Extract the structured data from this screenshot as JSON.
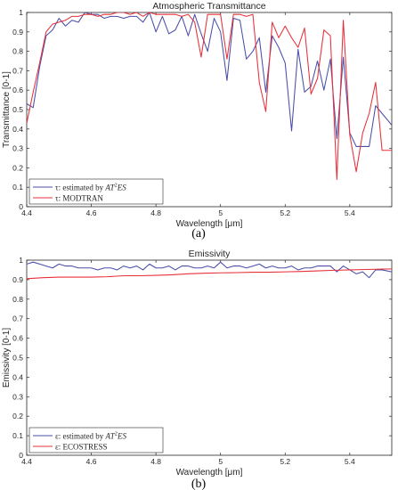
{
  "figure": {
    "caption_a": "(a)",
    "caption_b": "(b)"
  },
  "chart_data": [
    {
      "type": "line",
      "title": "Atmospheric Transmittance",
      "xlabel": "Wavelength [μm]",
      "ylabel": "Transmittance [0-1]",
      "xlim": [
        4.4,
        5.53
      ],
      "ylim": [
        0,
        1
      ],
      "xticks": [
        4.4,
        4.6,
        4.8,
        5,
        5.2,
        5.4
      ],
      "yticks": [
        0,
        0.1,
        0.2,
        0.3,
        0.4,
        0.5,
        0.6,
        0.7,
        0.8,
        0.9,
        1
      ],
      "grid": false,
      "legend_position": "bottom-left",
      "series": [
        {
          "name": "τ: estimated by AT²ES",
          "legend_prefix": "τ: estimated by ",
          "legend_math": "AT",
          "legend_sup": "2",
          "legend_math2": "ES",
          "color": "#4a4ea8",
          "x": [
            4.4,
            4.42,
            4.44,
            4.46,
            4.48,
            4.5,
            4.52,
            4.54,
            4.56,
            4.58,
            4.6,
            4.62,
            4.64,
            4.66,
            4.68,
            4.7,
            4.72,
            4.74,
            4.76,
            4.78,
            4.8,
            4.82,
            4.84,
            4.86,
            4.88,
            4.9,
            4.92,
            4.94,
            4.96,
            4.98,
            5.0,
            5.02,
            5.04,
            5.06,
            5.08,
            5.1,
            5.12,
            5.14,
            5.16,
            5.18,
            5.2,
            5.22,
            5.24,
            5.26,
            5.28,
            5.3,
            5.32,
            5.34,
            5.36,
            5.38,
            5.4,
            5.42,
            5.44,
            5.46,
            5.48,
            5.5,
            5.53
          ],
          "values": [
            0.53,
            0.51,
            0.72,
            0.88,
            0.91,
            0.97,
            0.93,
            0.96,
            0.95,
            1.0,
            0.99,
            0.99,
            0.97,
            0.98,
            0.98,
            0.97,
            0.98,
            0.98,
            0.95,
            1.0,
            0.9,
            0.98,
            0.89,
            0.91,
            0.98,
            0.88,
            0.99,
            0.89,
            0.8,
            0.97,
            0.9,
            0.65,
            0.97,
            0.96,
            0.76,
            0.8,
            0.87,
            0.59,
            0.88,
            0.82,
            0.74,
            0.39,
            0.81,
            0.59,
            0.62,
            0.75,
            0.6,
            0.76,
            0.35,
            0.77,
            0.38,
            0.31,
            0.31,
            0.31,
            0.52,
            0.48,
            0.42
          ]
        },
        {
          "name": "τ: MODTRAN",
          "legend_prefix": "τ: MODTRAN",
          "color": "#e8303a",
          "x": [
            4.4,
            4.42,
            4.44,
            4.46,
            4.48,
            4.5,
            4.52,
            4.54,
            4.56,
            4.58,
            4.6,
            4.62,
            4.64,
            4.66,
            4.68,
            4.7,
            4.72,
            4.74,
            4.76,
            4.78,
            4.8,
            4.82,
            4.84,
            4.86,
            4.88,
            4.9,
            4.92,
            4.94,
            4.96,
            4.98,
            5.0,
            5.02,
            5.04,
            5.06,
            5.08,
            5.1,
            5.12,
            5.14,
            5.16,
            5.18,
            5.2,
            5.22,
            5.24,
            5.26,
            5.28,
            5.3,
            5.32,
            5.34,
            5.36,
            5.38,
            5.4,
            5.42,
            5.44,
            5.46,
            5.48,
            5.5,
            5.53
          ],
          "values": [
            0.43,
            0.59,
            0.74,
            0.9,
            0.94,
            0.95,
            0.96,
            0.98,
            0.98,
            0.99,
            0.99,
            0.98,
            0.99,
            0.99,
            1.0,
            1.0,
            0.99,
            1.0,
            0.98,
            1.0,
            0.99,
            0.99,
            0.99,
            0.99,
            0.98,
            0.99,
            0.95,
            0.77,
            0.99,
            0.99,
            0.99,
            0.76,
            0.99,
            0.99,
            0.98,
            0.99,
            0.64,
            0.49,
            0.95,
            0.87,
            0.93,
            0.87,
            0.82,
            0.92,
            0.58,
            0.66,
            0.91,
            0.88,
            0.14,
            0.96,
            0.37,
            0.18,
            0.38,
            0.48,
            0.64,
            0.29,
            0.29
          ]
        }
      ]
    },
    {
      "type": "line",
      "title": "Emissivity",
      "xlabel": "Wavelength [μm]",
      "ylabel": "Emissivity [0-1]",
      "xlim": [
        4.4,
        5.53
      ],
      "ylim": [
        0,
        1
      ],
      "xticks": [
        4.4,
        4.6,
        4.8,
        5,
        5.2,
        5.4
      ],
      "yticks": [
        0,
        0.1,
        0.2,
        0.3,
        0.4,
        0.5,
        0.6,
        0.7,
        0.8,
        0.9,
        1
      ],
      "grid": false,
      "legend_position": "bottom-left",
      "series": [
        {
          "name": "ε: estimated by AT²ES",
          "legend_prefix": "ε: estimated by ",
          "legend_math": "AT",
          "legend_sup": "2",
          "legend_math2": "ES",
          "color": "#4a4ea8",
          "x": [
            4.4,
            4.42,
            4.44,
            4.46,
            4.48,
            4.5,
            4.52,
            4.54,
            4.56,
            4.58,
            4.6,
            4.62,
            4.64,
            4.66,
            4.68,
            4.7,
            4.72,
            4.74,
            4.76,
            4.78,
            4.8,
            4.82,
            4.84,
            4.86,
            4.88,
            4.9,
            4.92,
            4.94,
            4.96,
            4.98,
            5.0,
            5.02,
            5.04,
            5.06,
            5.08,
            5.1,
            5.12,
            5.14,
            5.16,
            5.18,
            5.2,
            5.22,
            5.24,
            5.26,
            5.28,
            5.3,
            5.32,
            5.34,
            5.36,
            5.38,
            5.4,
            5.42,
            5.44,
            5.46,
            5.48,
            5.5,
            5.53
          ],
          "values": [
            0.98,
            0.99,
            0.98,
            0.97,
            0.96,
            0.98,
            0.97,
            0.97,
            0.96,
            0.96,
            0.96,
            0.95,
            0.96,
            0.96,
            0.95,
            0.97,
            0.96,
            0.97,
            0.95,
            0.98,
            0.96,
            0.96,
            0.97,
            0.95,
            0.97,
            0.97,
            0.96,
            0.96,
            0.97,
            0.96,
            0.99,
            0.96,
            0.97,
            0.97,
            0.96,
            0.97,
            0.98,
            0.96,
            0.97,
            0.96,
            0.96,
            0.97,
            0.95,
            0.96,
            0.96,
            0.97,
            0.97,
            0.97,
            0.94,
            0.97,
            0.95,
            0.93,
            0.94,
            0.91,
            0.95,
            0.95,
            0.94
          ]
        },
        {
          "name": "ε: ECOSTRESS",
          "legend_prefix": "ε: ECOSTRESS",
          "color": "#e8303a",
          "x": [
            4.4,
            4.45,
            4.5,
            4.55,
            4.6,
            4.65,
            4.7,
            4.75,
            4.8,
            4.85,
            4.9,
            4.95,
            5.0,
            5.05,
            5.1,
            5.15,
            5.2,
            5.25,
            5.3,
            5.35,
            5.4,
            5.45,
            5.5,
            5.53
          ],
          "values": [
            0.905,
            0.91,
            0.913,
            0.913,
            0.913,
            0.915,
            0.92,
            0.92,
            0.922,
            0.925,
            0.93,
            0.933,
            0.935,
            0.936,
            0.938,
            0.938,
            0.94,
            0.942,
            0.945,
            0.948,
            0.95,
            0.952,
            0.954,
            0.955
          ]
        }
      ]
    }
  ]
}
